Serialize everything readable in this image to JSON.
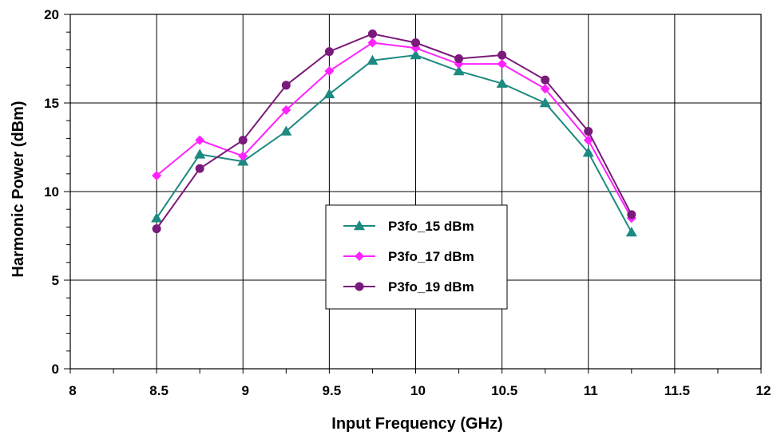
{
  "chart_data": {
    "type": "line",
    "title": "",
    "xlabel": "Input Frequency (GHz)",
    "ylabel": "Harmonic Power (dBm)",
    "xlim": [
      8,
      12
    ],
    "ylim": [
      0,
      20
    ],
    "x_ticks": [
      "8",
      "8.5",
      "9",
      "9.5",
      "10",
      "10.5",
      "11",
      "11.5",
      "12"
    ],
    "y_ticks": [
      "0",
      "5",
      "10",
      "15",
      "20"
    ],
    "grid": true,
    "legend_position": "center",
    "x": [
      8.5,
      8.75,
      9,
      9.25,
      9.5,
      9.75,
      10,
      10.25,
      10.5,
      10.75,
      11,
      11.25
    ],
    "series": [
      {
        "name": "P3fo_15 dBm",
        "color": "#1b8a80",
        "marker": "triangle",
        "values": [
          8.5,
          12.1,
          11.7,
          13.4,
          15.5,
          17.4,
          17.7,
          16.8,
          16.1,
          15.0,
          12.2,
          7.7
        ]
      },
      {
        "name": "P3fo_17 dBm",
        "color": "#ff22ff",
        "marker": "diamond",
        "values": [
          10.9,
          12.9,
          12.0,
          14.6,
          16.8,
          18.4,
          18.1,
          17.2,
          17.2,
          15.8,
          12.9,
          8.5
        ]
      },
      {
        "name": "P3fo_19 dBm",
        "color": "#7a1a7a",
        "marker": "circle",
        "values": [
          7.9,
          11.3,
          12.9,
          16.0,
          17.9,
          18.9,
          18.4,
          17.5,
          17.7,
          16.3,
          13.4,
          8.7
        ]
      }
    ]
  }
}
